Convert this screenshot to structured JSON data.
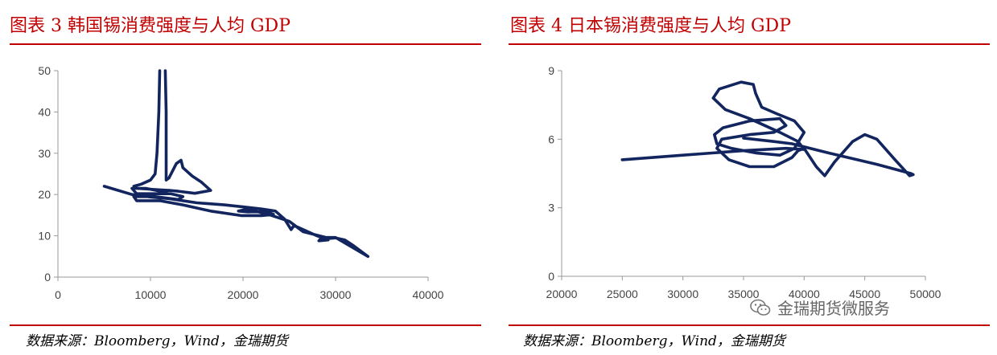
{
  "colors": {
    "accent": "#c00000",
    "line": "#12255e",
    "axis": "#999999"
  },
  "footer": {
    "source": "数据来源：Bloomberg，Wind，金瑞期货"
  },
  "watermark": {
    "icon": "wechat-icon",
    "text": "金瑞期货微服务"
  },
  "chart_data": [
    {
      "title": "图表 3 韩国锡消费强度与人均 GDP",
      "type": "line",
      "xlabel": "",
      "ylabel": "",
      "xlim": [
        0,
        40000
      ],
      "ylim": [
        0,
        50
      ],
      "x_ticks": [
        0,
        10000,
        20000,
        30000,
        40000
      ],
      "y_ticks": [
        0,
        10,
        20,
        30,
        40,
        50
      ],
      "grid": false,
      "series": [
        {
          "points": [
            [
              5000,
              22
            ],
            [
              8000,
              20
            ],
            [
              10000,
              19.4
            ],
            [
              12000,
              19
            ],
            [
              15000,
              18
            ],
            [
              18000,
              17.5
            ],
            [
              20000,
              17
            ],
            [
              22000,
              16.5
            ],
            [
              23500,
              16
            ],
            [
              24500,
              14
            ],
            [
              25200,
              11.5
            ],
            [
              25500,
              12.5
            ],
            [
              26000,
              12
            ],
            [
              27000,
              11
            ],
            [
              28000,
              10
            ],
            [
              29000,
              9.3
            ],
            [
              30000,
              9.5
            ],
            [
              31000,
              9
            ],
            [
              32000,
              7.5
            ],
            [
              33500,
              5
            ],
            [
              30000,
              9.6
            ],
            [
              28500,
              9.6
            ],
            [
              28200,
              8.8
            ],
            [
              29200,
              9
            ],
            [
              29000,
              9.6
            ],
            [
              26500,
              11
            ],
            [
              25000,
              13.5
            ],
            [
              23000,
              15
            ],
            [
              20500,
              16.5
            ],
            [
              19500,
              16
            ],
            [
              20500,
              15.8
            ],
            [
              22500,
              15.9
            ],
            [
              23300,
              15.2
            ],
            [
              22000,
              14.9
            ],
            [
              19800,
              14.9
            ],
            [
              16500,
              16
            ],
            [
              13500,
              17.5
            ],
            [
              11000,
              18.5
            ],
            [
              8500,
              18.5
            ],
            [
              8200,
              19.5
            ],
            [
              10500,
              19.5
            ],
            [
              13000,
              18.8
            ],
            [
              13500,
              19.5
            ],
            [
              12200,
              20.2
            ],
            [
              10000,
              20.2
            ],
            [
              8500,
              20.2
            ],
            [
              8000,
              21.5
            ],
            [
              9500,
              21.5
            ],
            [
              11300,
              20.7
            ],
            [
              12000,
              21
            ],
            [
              13000,
              20.8
            ],
            [
              14800,
              20.3
            ],
            [
              16500,
              21
            ],
            [
              15500,
              23
            ],
            [
              14500,
              24.5
            ],
            [
              13500,
              26.5
            ],
            [
              13300,
              28.3
            ],
            [
              12800,
              27.5
            ],
            [
              12000,
              24
            ],
            [
              11700,
              23.5
            ],
            [
              11700,
              30
            ],
            [
              11700,
              40
            ],
            [
              11600,
              50
            ]
          ]
        },
        {
          "points": [
            [
              11000,
              50
            ],
            [
              10900,
              40
            ],
            [
              10700,
              30
            ],
            [
              10500,
              25
            ],
            [
              10000,
              23.5
            ],
            [
              9000,
              22.5
            ],
            [
              8200,
              22
            ],
            [
              8500,
              21.5
            ],
            [
              10500,
              21.2
            ],
            [
              12000,
              21
            ]
          ]
        }
      ]
    },
    {
      "title": "图表 4 日本锡消费强度与人均 GDP",
      "type": "line",
      "xlabel": "",
      "ylabel": "",
      "xlim": [
        20000,
        50000
      ],
      "ylim": [
        0,
        9
      ],
      "x_ticks": [
        20000,
        25000,
        30000,
        35000,
        40000,
        45000,
        50000
      ],
      "y_ticks": [
        0,
        3,
        6,
        9
      ],
      "grid": false,
      "series": [
        {
          "points": [
            [
              25000,
              5.1
            ],
            [
              30000,
              5.3
            ],
            [
              35000,
              5.5
            ],
            [
              38500,
              5.6
            ],
            [
              40000,
              5.55
            ],
            [
              39500,
              5.9
            ],
            [
              38000,
              6.3
            ],
            [
              35500,
              6.9
            ],
            [
              33500,
              7.3
            ],
            [
              32500,
              7.8
            ],
            [
              33000,
              8.2
            ],
            [
              34800,
              8.5
            ],
            [
              35800,
              8.4
            ],
            [
              36000,
              8.0
            ],
            [
              36500,
              7.4
            ],
            [
              37800,
              7.1
            ],
            [
              39200,
              6.8
            ],
            [
              40000,
              6.3
            ],
            [
              39200,
              5.6
            ],
            [
              38000,
              5.3
            ],
            [
              36000,
              5.4
            ],
            [
              34000,
              5.6
            ],
            [
              32800,
              5.8
            ],
            [
              32600,
              6.2
            ],
            [
              33300,
              6.5
            ],
            [
              35500,
              6.8
            ],
            [
              38000,
              6.9
            ],
            [
              38500,
              6.6
            ],
            [
              37500,
              6.3
            ],
            [
              35500,
              6.2
            ],
            [
              33200,
              6.0
            ],
            [
              32800,
              5.6
            ],
            [
              33800,
              5.1
            ],
            [
              35500,
              4.8
            ],
            [
              37500,
              4.8
            ],
            [
              39000,
              5.2
            ],
            [
              39500,
              5.5
            ],
            [
              40000,
              5.6
            ],
            [
              41000,
              4.8
            ],
            [
              41700,
              4.4
            ],
            [
              42500,
              5.0
            ],
            [
              44000,
              5.9
            ],
            [
              45000,
              6.2
            ],
            [
              46000,
              6.0
            ],
            [
              47500,
              5.1
            ],
            [
              48700,
              4.4
            ],
            [
              49000,
              4.45
            ],
            [
              48800,
              4.5
            ],
            [
              46000,
              4.9
            ],
            [
              42000,
              5.4
            ],
            [
              39000,
              5.8
            ],
            [
              37500,
              5.9
            ],
            [
              35000,
              6.05
            ]
          ]
        }
      ]
    }
  ]
}
